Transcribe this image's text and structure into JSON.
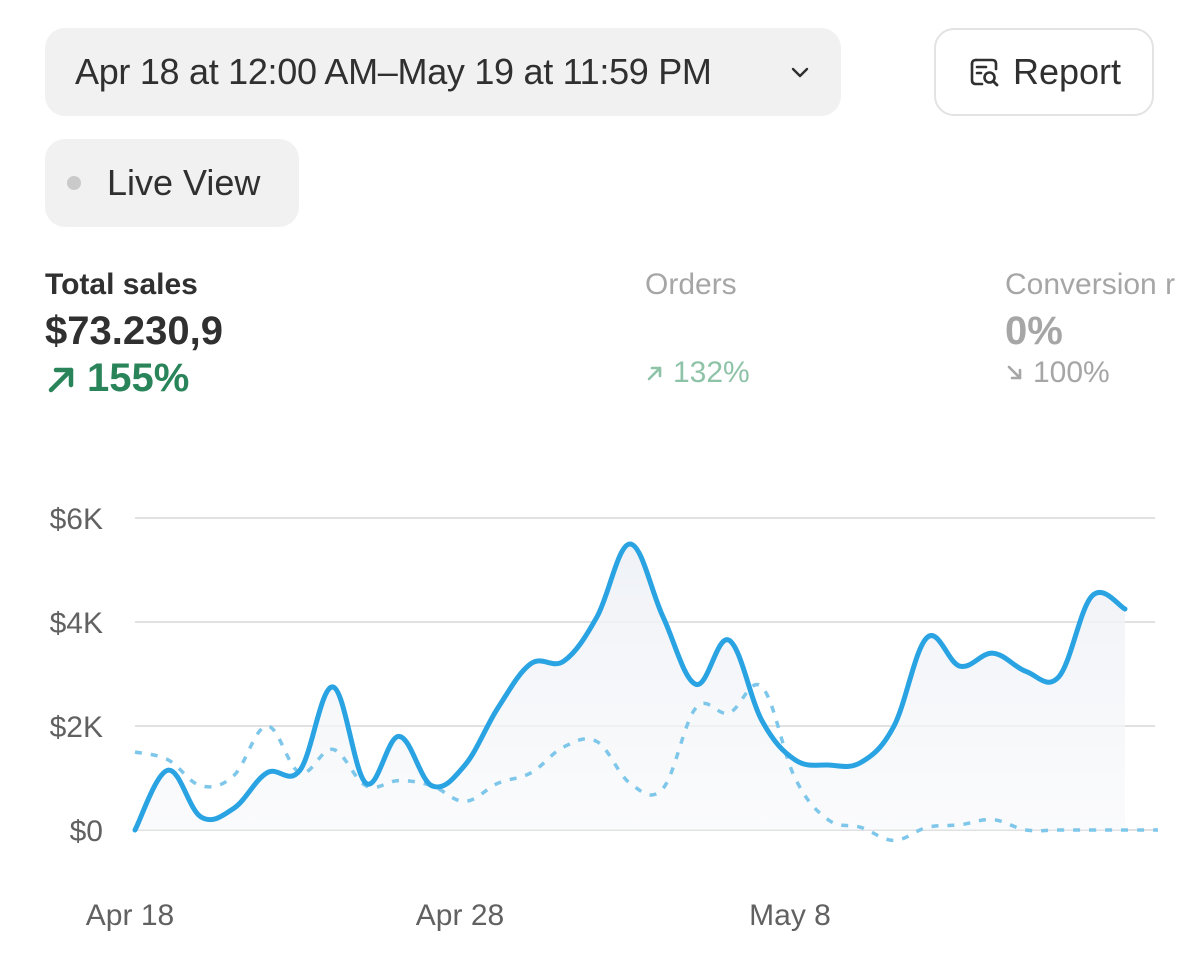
{
  "date_range": {
    "label": "Apr 18 at 12:00 AM–May 19 at 11:59 PM",
    "icon": "chevron-down-icon"
  },
  "report_button": {
    "label": "Report",
    "icon": "report-search-icon"
  },
  "live_view": {
    "label": "Live View",
    "status_color": "#cacaca"
  },
  "metrics": {
    "total_sales": {
      "title": "Total sales",
      "value": "$73.230,9",
      "change": "155%",
      "direction": "up",
      "color": "#29845a"
    },
    "orders": {
      "title": "Orders",
      "change": "132%",
      "direction": "up",
      "color": "#8ec3a8"
    },
    "conversion": {
      "title": "Conversion r",
      "value": "0%",
      "change": "100%",
      "direction": "down",
      "color": "#a6a6a6"
    }
  },
  "chart_data": {
    "type": "line",
    "y_ticks": [
      "$0",
      "$2K",
      "$4K",
      "$6K"
    ],
    "ylim": [
      0,
      6000
    ],
    "x_tick_labels": [
      {
        "label": "Apr 18",
        "index": 0
      },
      {
        "label": "Apr 28",
        "index": 10
      },
      {
        "label": "May 8",
        "index": 20
      }
    ],
    "grid": true,
    "series": [
      {
        "style": "solid",
        "color": "#2aa3e3",
        "filled": true,
        "values": [
          0,
          1150,
          250,
          420,
          1100,
          1150,
          2750,
          900,
          1800,
          850,
          1250,
          2350,
          3200,
          3250,
          4100,
          5500,
          4100,
          2800,
          3650,
          2100,
          1350,
          1250,
          1300,
          2000,
          3700,
          3150,
          3400,
          3050,
          2950,
          4500,
          4250
        ]
      },
      {
        "style": "dashed",
        "color": "#7ec7ea",
        "filled": false,
        "values": [
          1500,
          1350,
          850,
          1050,
          2000,
          1100,
          1550,
          850,
          950,
          850,
          550,
          900,
          1100,
          1600,
          1700,
          900,
          800,
          2350,
          2250,
          2750,
          1000,
          200,
          50,
          -200,
          50,
          100,
          200,
          0,
          0,
          0,
          0,
          0
        ]
      }
    ]
  }
}
